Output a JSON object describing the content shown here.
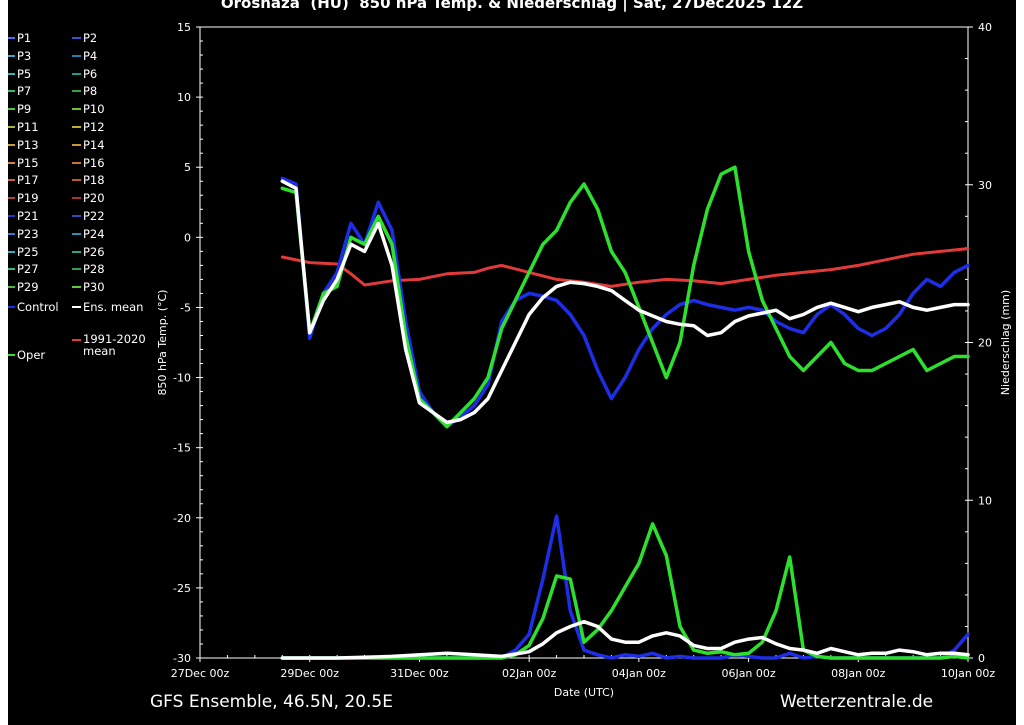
{
  "title": "Oroshaza  (HU)  850 hPa Temp. & Niederschlag | Sat, 27Dec2025 12Z",
  "footer": {
    "left": "GFS Ensemble, 46.5N, 20.5E",
    "right": "Wetterzentrale.de"
  },
  "legend": [
    {
      "label": "P1",
      "color": "#4a6cf0"
    },
    {
      "label": "P2",
      "color": "#2f55c9"
    },
    {
      "label": "P3",
      "color": "#3fa0d6"
    },
    {
      "label": "P4",
      "color": "#1f7fb0"
    },
    {
      "label": "P5",
      "color": "#2fb6b0"
    },
    {
      "label": "P6",
      "color": "#239b8a"
    },
    {
      "label": "P7",
      "color": "#37b86a"
    },
    {
      "label": "P8",
      "color": "#2fa14a"
    },
    {
      "label": "P9",
      "color": "#52c23a"
    },
    {
      "label": "P10",
      "color": "#6fc02a"
    },
    {
      "label": "P11",
      "color": "#a4b83a"
    },
    {
      "label": "P12",
      "color": "#c0ad2a"
    },
    {
      "label": "P13",
      "color": "#c9a23c"
    },
    {
      "label": "P14",
      "color": "#cf9632"
    },
    {
      "label": "P15",
      "color": "#d28740"
    },
    {
      "label": "P16",
      "color": "#c5762f"
    },
    {
      "label": "P17",
      "color": "#c8623c"
    },
    {
      "label": "P18",
      "color": "#b95a2e"
    },
    {
      "label": "P19",
      "color": "#b0453a"
    },
    {
      "label": "P20",
      "color": "#a3342e"
    },
    {
      "label": "P21",
      "color": "#2538c2"
    },
    {
      "label": "P22",
      "color": "#2d4fb3"
    },
    {
      "label": "P23",
      "color": "#3a7ad2"
    },
    {
      "label": "P24",
      "color": "#2b8fb8"
    },
    {
      "label": "P25",
      "color": "#32b0c0"
    },
    {
      "label": "P26",
      "color": "#27a68c"
    },
    {
      "label": "P27",
      "color": "#35b97c"
    },
    {
      "label": "P28",
      "color": "#2e9c5a"
    },
    {
      "label": "P29",
      "color": "#4cb83a"
    },
    {
      "label": "P30",
      "color": "#5fc93a"
    },
    {
      "label": "Control",
      "color": "#1e2ee6"
    },
    {
      "label": "Ens. mean",
      "color": "#ffffff"
    },
    {
      "label": "1991-2020 mean",
      "color": "#e03a3a"
    },
    {
      "label": "Oper",
      "color": "#2ee02e"
    }
  ],
  "chart_data": {
    "type": "line",
    "title": "Oroshaza  (HU)  850 hPa Temp. & Niederschlag | Sat, 27Dec2025 12Z",
    "xlabel": "Date (UTC)",
    "ylabel_left": "850 hPa Temp. (°C)",
    "ylabel_right": "Niederschlag (mm)",
    "x_ticks": [
      "27Dec 00z",
      "29Dec 00z",
      "31Dec 00z",
      "02Jan 00z",
      "04Jan 00z",
      "06Jan 00z",
      "08Jan 00z",
      "10Jan 00z"
    ],
    "x_range_hours": [
      0,
      336
    ],
    "ylim_left": [
      -30,
      15
    ],
    "y_ticks_left": [
      15,
      10,
      5,
      0,
      -5,
      -10,
      -15,
      -20,
      -25,
      -30
    ],
    "ylim_right": [
      0,
      40
    ],
    "y_ticks_right": [
      40,
      30,
      20,
      10,
      0
    ],
    "grid": false,
    "legend_placement": "left-outside",
    "series": [
      {
        "name": "Ens. mean",
        "color": "#ffffff",
        "axis": "left",
        "x": [
          36,
          42,
          48,
          54,
          60,
          66,
          72,
          78,
          84,
          90,
          96,
          102,
          108,
          114,
          120,
          126,
          132,
          138,
          144,
          150,
          156,
          162,
          168,
          174,
          180,
          186,
          192,
          198,
          204,
          210,
          216,
          222,
          228,
          234,
          240,
          246,
          252,
          258,
          264,
          270,
          276,
          282,
          288,
          294,
          300,
          306,
          312,
          318,
          324,
          330,
          336
        ],
        "y": [
          4.0,
          3.5,
          -6.8,
          -4.5,
          -3.0,
          -0.5,
          -1.0,
          1.0,
          -2.0,
          -8.0,
          -11.8,
          -12.5,
          -13.2,
          -13.0,
          -12.5,
          -11.5,
          -9.5,
          -7.5,
          -5.5,
          -4.3,
          -3.5,
          -3.2,
          -3.3,
          -3.5,
          -3.8,
          -4.5,
          -5.2,
          -5.6,
          -6.0,
          -6.2,
          -6.3,
          -7.0,
          -6.8,
          -6.0,
          -5.6,
          -5.4,
          -5.2,
          -5.8,
          -5.5,
          -5.0,
          -4.7,
          -5.0,
          -5.3,
          -5.0,
          -4.8,
          -4.6,
          -5.0,
          -5.2,
          -5.0,
          -4.8,
          -4.8
        ]
      },
      {
        "name": "1991-2020 mean",
        "color": "#e03a3a",
        "axis": "left",
        "x": [
          36,
          48,
          60,
          66,
          72,
          84,
          96,
          108,
          120,
          126,
          132,
          144,
          156,
          168,
          180,
          192,
          204,
          216,
          228,
          240,
          252,
          264,
          276,
          288,
          300,
          312,
          324,
          336
        ],
        "y": [
          -1.4,
          -1.8,
          -1.9,
          -2.6,
          -3.4,
          -3.1,
          -3.0,
          -2.6,
          -2.5,
          -2.2,
          -2.0,
          -2.5,
          -3.0,
          -3.2,
          -3.5,
          -3.2,
          -3.0,
          -3.1,
          -3.3,
          -3.0,
          -2.7,
          -2.5,
          -2.3,
          -2.0,
          -1.6,
          -1.2,
          -1.0,
          -0.8
        ]
      },
      {
        "name": "Control",
        "color": "#1e2ee6",
        "axis": "left",
        "x": [
          36,
          42,
          48,
          54,
          60,
          66,
          72,
          78,
          84,
          90,
          96,
          102,
          108,
          114,
          120,
          126,
          132,
          138,
          144,
          150,
          156,
          162,
          168,
          174,
          180,
          186,
          192,
          198,
          204,
          210,
          216,
          222,
          228,
          234,
          240,
          246,
          252,
          258,
          264,
          270,
          276,
          282,
          288,
          294,
          300,
          306,
          312,
          318,
          324,
          330,
          336
        ],
        "y": [
          4.2,
          3.8,
          -7.2,
          -4.0,
          -2.5,
          1.0,
          -0.5,
          2.5,
          0.5,
          -6.0,
          -11.0,
          -12.5,
          -13.5,
          -12.8,
          -12.0,
          -10.5,
          -6.0,
          -4.5,
          -4.0,
          -4.2,
          -4.5,
          -5.5,
          -7.0,
          -9.5,
          -11.5,
          -10.0,
          -8.0,
          -6.5,
          -5.5,
          -4.8,
          -4.5,
          -4.8,
          -5.0,
          -5.2,
          -5.0,
          -5.2,
          -6.0,
          -6.5,
          -6.8,
          -5.5,
          -4.8,
          -5.5,
          -6.5,
          -7.0,
          -6.5,
          -5.5,
          -4.0,
          -3.0,
          -3.5,
          -2.5,
          -2.0
        ]
      },
      {
        "name": "Oper",
        "color": "#2ee02e",
        "axis": "left",
        "x": [
          36,
          42,
          48,
          54,
          60,
          66,
          72,
          78,
          84,
          90,
          96,
          102,
          108,
          114,
          120,
          126,
          132,
          138,
          144,
          150,
          156,
          162,
          168,
          174,
          180,
          186,
          192,
          198,
          204,
          210,
          216,
          222,
          228,
          234,
          240,
          246,
          252,
          258,
          264,
          270,
          276,
          282,
          288,
          294,
          300,
          306,
          312,
          318,
          324,
          330,
          336
        ],
        "y": [
          3.5,
          3.2,
          -6.8,
          -4.0,
          -3.5,
          0.0,
          -0.5,
          1.5,
          -0.5,
          -7.0,
          -11.5,
          -12.5,
          -13.5,
          -12.5,
          -11.5,
          -10.0,
          -6.5,
          -4.5,
          -2.5,
          -0.5,
          0.5,
          2.5,
          3.8,
          2.0,
          -1.0,
          -2.5,
          -5.0,
          -7.5,
          -10.0,
          -7.5,
          -2.0,
          2.0,
          4.5,
          5.0,
          -1.0,
          -4.5,
          -6.5,
          -8.5,
          -9.5,
          -8.5,
          -7.5,
          -9.0,
          -9.5,
          -9.5,
          -9.0,
          -8.5,
          -8.0,
          -9.5,
          -9.0,
          -8.5,
          -8.5
        ]
      },
      {
        "name": "Ens. mean",
        "color": "#ffffff",
        "axis": "right",
        "x": [
          36,
          60,
          84,
          108,
          120,
          132,
          144,
          150,
          156,
          162,
          168,
          174,
          180,
          186,
          192,
          198,
          204,
          210,
          216,
          222,
          228,
          234,
          240,
          246,
          252,
          258,
          264,
          270,
          276,
          282,
          288,
          294,
          300,
          306,
          312,
          318,
          324,
          330,
          336
        ],
        "y": [
          0.0,
          0.0,
          0.1,
          0.3,
          0.2,
          0.1,
          0.4,
          0.9,
          1.6,
          2.0,
          2.3,
          2.0,
          1.2,
          1.0,
          1.0,
          1.4,
          1.6,
          1.4,
          0.8,
          0.6,
          0.6,
          1.0,
          1.2,
          1.3,
          0.9,
          0.6,
          0.5,
          0.3,
          0.6,
          0.4,
          0.2,
          0.3,
          0.3,
          0.5,
          0.4,
          0.2,
          0.3,
          0.3,
          0.2
        ]
      },
      {
        "name": "Control",
        "color": "#1e2ee6",
        "axis": "right",
        "x": [
          36,
          84,
          132,
          138,
          144,
          150,
          156,
          162,
          168,
          174,
          180,
          186,
          192,
          198,
          204,
          210,
          216,
          222,
          228,
          234,
          240,
          246,
          252,
          258,
          264,
          270,
          276,
          282,
          288,
          294,
          300,
          306,
          312,
          318,
          324,
          330,
          336
        ],
        "y": [
          0.0,
          0.0,
          0.0,
          0.5,
          1.5,
          5.0,
          9.0,
          3.0,
          0.5,
          0.2,
          0.0,
          0.2,
          0.1,
          0.3,
          0.0,
          0.1,
          0.0,
          0.0,
          0.0,
          0.2,
          0.1,
          0.0,
          0.0,
          0.3,
          0.0,
          0.1,
          0.0,
          0.0,
          0.0,
          0.0,
          0.0,
          0.0,
          0.0,
          0.0,
          0.0,
          0.5,
          1.5
        ]
      },
      {
        "name": "Oper",
        "color": "#2ee02e",
        "axis": "right",
        "x": [
          36,
          84,
          132,
          138,
          144,
          150,
          156,
          162,
          168,
          174,
          180,
          186,
          192,
          198,
          204,
          210,
          216,
          222,
          228,
          234,
          240,
          246,
          252,
          258,
          264,
          270,
          276,
          282,
          288,
          294,
          300,
          306,
          312,
          318,
          324,
          330,
          336
        ],
        "y": [
          0.0,
          0.0,
          0.0,
          0.2,
          0.8,
          2.5,
          5.2,
          5.0,
          1.0,
          1.8,
          3.0,
          4.5,
          6.0,
          8.5,
          6.5,
          2.0,
          0.5,
          0.3,
          0.4,
          0.2,
          0.3,
          1.0,
          3.0,
          6.4,
          0.5,
          0.1,
          0.0,
          0.0,
          0.0,
          0.0,
          0.0,
          0.0,
          0.0,
          0.0,
          0.0,
          0.1,
          0.0
        ]
      }
    ]
  }
}
